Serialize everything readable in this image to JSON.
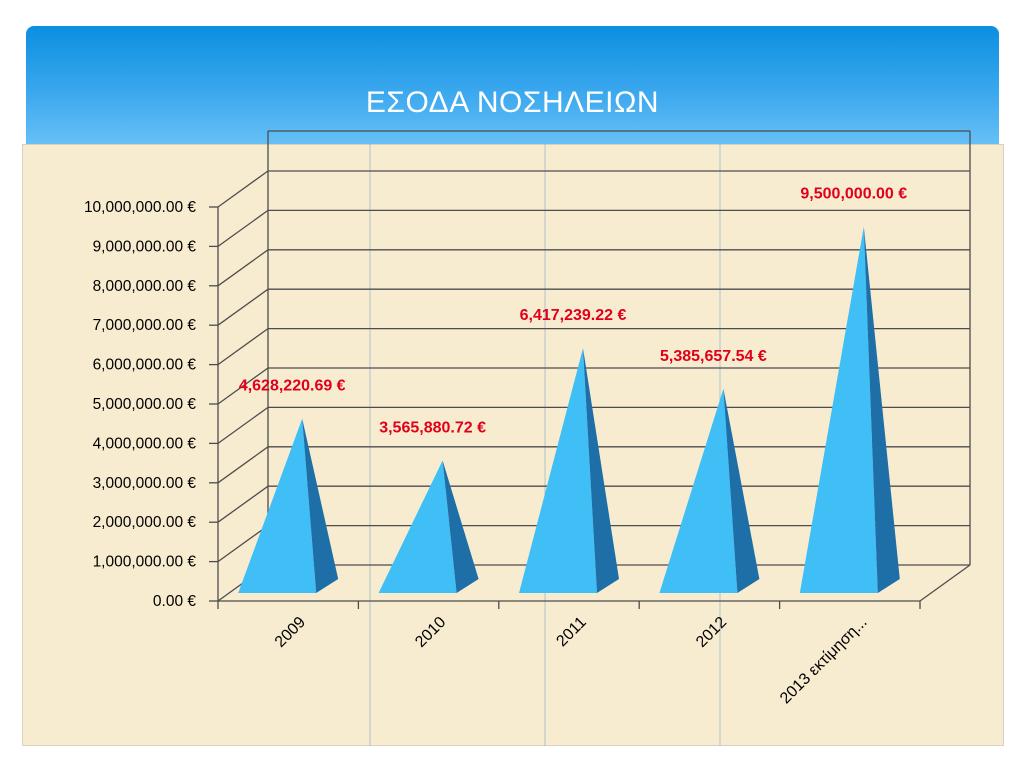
{
  "slide": {
    "title": "ΕΣΟΔΑ ΝΟΣΗΛΕΙΩΝ"
  },
  "colors": {
    "header_top": "#0a8fe0",
    "header_bottom": "#66c0f6",
    "panel": "#f8ecd0",
    "pyramid_light": "#3fbff5",
    "pyramid_mid": "#2ba3e6",
    "pyramid_dark": "#1e6fa8",
    "data_label": "#e0001a"
  },
  "chart_data": {
    "type": "bar",
    "style": "3d-pyramid",
    "categories": [
      "2009",
      "2010",
      "2011",
      "2012",
      "2013 εκτίμηση..."
    ],
    "values": [
      4628220.69,
      3565880.72,
      6417239.22,
      5385657.54,
      9500000.0
    ],
    "data_labels": [
      "4,628,220.69 €",
      "3,565,880.72 €",
      "6,417,239.22 €",
      "5,385,657.54 €",
      "9,500,000.00 €"
    ],
    "ylim": [
      0,
      10000000
    ],
    "yticks": [
      0,
      1000000,
      2000000,
      3000000,
      4000000,
      5000000,
      6000000,
      7000000,
      8000000,
      9000000,
      10000000
    ],
    "ytick_labels": [
      "0.00 €",
      "1,000,000.00 €",
      "2,000,000.00 €",
      "3,000,000.00 €",
      "4,000,000.00 €",
      "5,000,000.00 €",
      "6,000,000.00 €",
      "7,000,000.00 €",
      "8,000,000.00 €",
      "9,000,000.00 €",
      "10,000,000.00 €"
    ],
    "grid": true,
    "legend": "none"
  }
}
